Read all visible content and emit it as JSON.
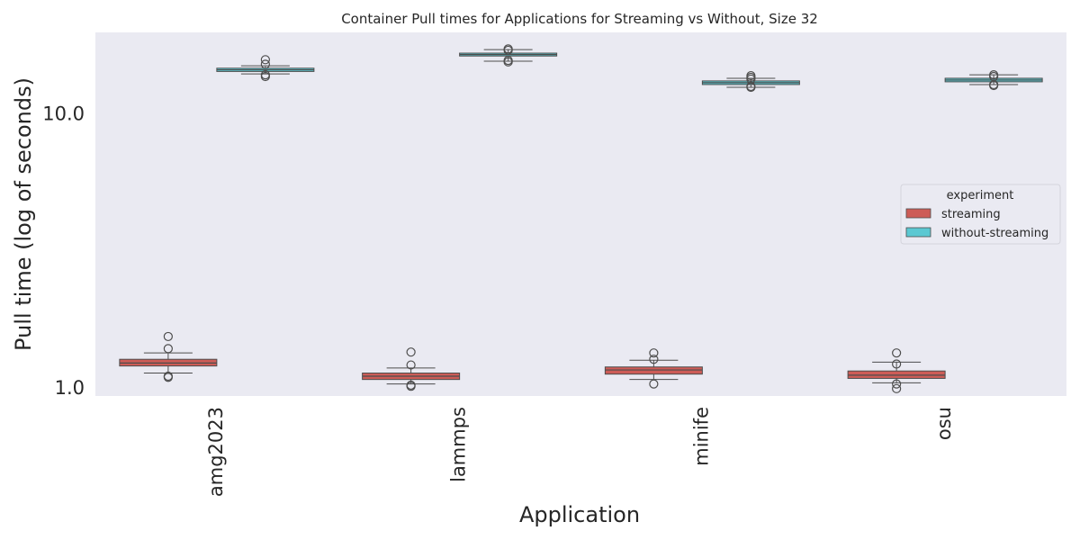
{
  "chart_data": {
    "type": "box",
    "title": "Container Pull times for Applications for Streaming vs Without, Size 32",
    "xlabel": "Application",
    "ylabel": "Pull time (log of seconds)",
    "yscale": "log",
    "ylim": [
      0.94,
      20.0
    ],
    "yticks": [
      {
        "value": 1.0,
        "label": "1.0"
      },
      {
        "value": 10.0,
        "label": "10.0"
      }
    ],
    "grid": false,
    "categories": [
      "amg2023",
      "lammps",
      "minife",
      "osu"
    ],
    "legend": {
      "title": "experiment",
      "placement": "center-right"
    },
    "series": [
      {
        "name": "streaming",
        "color": "#CD5C57",
        "boxes": [
          {
            "whislo": 1.14,
            "q1": 1.21,
            "med": 1.24,
            "q3": 1.28,
            "whishi": 1.35,
            "fliers": [
              1.55,
              1.4,
              1.11,
              1.1
            ]
          },
          {
            "whislo": 1.04,
            "q1": 1.08,
            "med": 1.11,
            "q3": 1.14,
            "whishi": 1.19,
            "fliers": [
              1.36,
              1.22,
              1.02,
              1.03
            ]
          },
          {
            "whislo": 1.08,
            "q1": 1.13,
            "med": 1.17,
            "q3": 1.2,
            "whishi": 1.27,
            "fliers": [
              1.35,
              1.28,
              1.04
            ]
          },
          {
            "whislo": 1.05,
            "q1": 1.09,
            "med": 1.12,
            "q3": 1.16,
            "whishi": 1.25,
            "fliers": [
              1.35,
              1.23,
              1.04,
              1.0
            ]
          }
        ]
      },
      {
        "name": "without-streaming",
        "color": "#5BC8D2",
        "boxes": [
          {
            "whislo": 14.1,
            "q1": 14.4,
            "med": 14.6,
            "q3": 14.8,
            "whishi": 15.1,
            "fliers": [
              15.9,
              15.3,
              14.0,
              13.8
            ]
          },
          {
            "whislo": 15.7,
            "q1": 16.4,
            "med": 16.6,
            "q3": 16.8,
            "whishi": 17.3,
            "fliers": [
              17.4,
              17.2,
              15.8,
              15.6
            ]
          },
          {
            "whislo": 12.6,
            "q1": 12.9,
            "med": 13.1,
            "q3": 13.3,
            "whishi": 13.6,
            "fliers": [
              13.9,
              13.7,
              13.5,
              12.7,
              12.6
            ]
          },
          {
            "whislo": 12.9,
            "q1": 13.2,
            "med": 13.4,
            "q3": 13.6,
            "whishi": 14.0,
            "fliers": [
              14.0,
              13.8,
              12.9,
              12.8
            ]
          }
        ]
      }
    ]
  }
}
